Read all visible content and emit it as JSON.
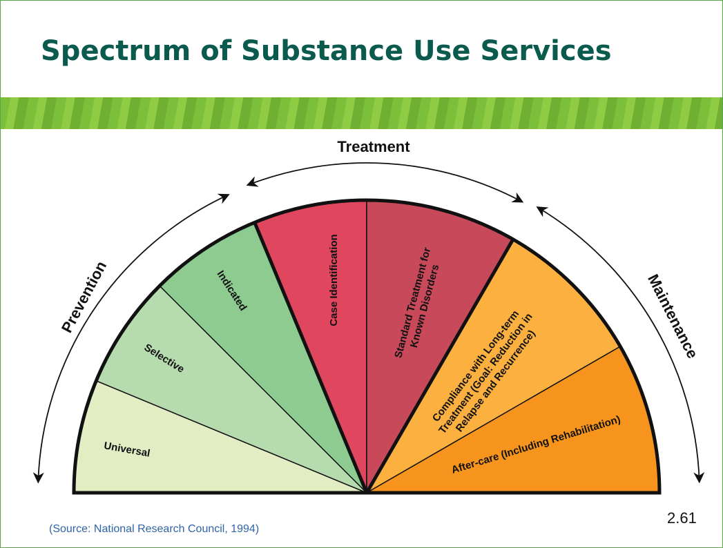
{
  "header": {
    "title": "Spectrum of Substance Use Services"
  },
  "arcs": [
    {
      "label": "Prevention"
    },
    {
      "label": "Treatment"
    },
    {
      "label": "Maintenance"
    }
  ],
  "segments": [
    {
      "lines": [
        "Universal"
      ]
    },
    {
      "lines": [
        "Selective"
      ]
    },
    {
      "lines": [
        "Indicated"
      ]
    },
    {
      "lines": [
        "Case Identification"
      ]
    },
    {
      "lines": [
        "Standard Treatment for",
        "Known Disorders"
      ]
    },
    {
      "lines": [
        "Compliance with Long-term",
        "Treatment (Goal: Reduction in",
        "Relapse and Recurrence)"
      ]
    },
    {
      "lines": [
        "After-care (Including Rehabilitation)"
      ]
    }
  ],
  "footer": {
    "source": "(Source: National Research Council, 1994)",
    "slide_number": "2.61"
  }
}
